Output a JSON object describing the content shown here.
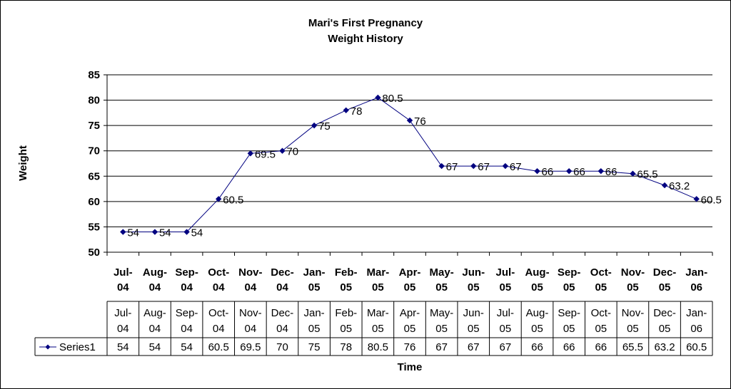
{
  "chart_data": {
    "type": "line",
    "title": "Mari's First Pregnancy",
    "subtitle": "Weight History",
    "xlabel": "Time",
    "ylabel": "Weight",
    "ylim": [
      50,
      85
    ],
    "yticks": [
      "50",
      "55",
      "60",
      "65",
      "70",
      "75",
      "80",
      "85"
    ],
    "grid": true,
    "legend": "data table",
    "categories": [
      [
        "Jul-",
        "04"
      ],
      [
        "Aug-",
        "04"
      ],
      [
        "Sep-",
        "04"
      ],
      [
        "Oct-",
        "04"
      ],
      [
        "Nov-",
        "04"
      ],
      [
        "Dec-",
        "04"
      ],
      [
        "Jan-",
        "05"
      ],
      [
        "Feb-",
        "05"
      ],
      [
        "Mar-",
        "05"
      ],
      [
        "Apr-",
        "05"
      ],
      [
        "May-",
        "05"
      ],
      [
        "Jun-",
        "05"
      ],
      [
        "Jul-",
        "05"
      ],
      [
        "Aug-",
        "05"
      ],
      [
        "Sep-",
        "05"
      ],
      [
        "Oct-",
        "05"
      ],
      [
        "Nov-",
        "05"
      ],
      [
        "Dec-",
        "05"
      ],
      [
        "Jan-",
        "06"
      ]
    ],
    "series": [
      {
        "name": "Series1",
        "color": "#000080",
        "values": [
          54,
          54,
          54,
          60.5,
          69.5,
          70,
          75,
          78,
          80.5,
          76,
          67,
          67,
          67,
          66,
          66,
          66,
          65.5,
          63.2,
          60.5
        ],
        "labels": [
          "54",
          "54",
          "54",
          "60.5",
          "69.5",
          "70",
          "75",
          "78",
          "80.5",
          "76",
          "67",
          "67",
          "67",
          "66",
          "66",
          "66",
          "65.5",
          "63.2",
          "60.5"
        ]
      }
    ]
  }
}
